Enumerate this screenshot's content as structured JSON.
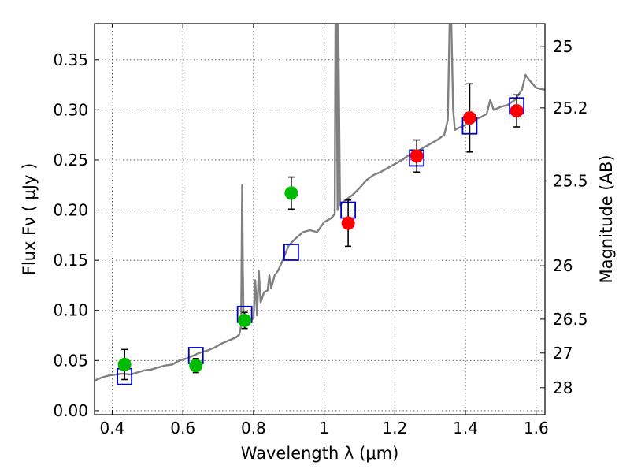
{
  "chart_data": {
    "type": "scatter",
    "xlabel": "Wavelength  λ (μm)",
    "ylabel": "Flux  Fν  ( μJy )",
    "y2label": "Magnitude (AB)",
    "xlim": [
      0.35,
      1.625
    ],
    "ylim": [
      -0.004,
      0.386
    ],
    "grid": true,
    "x_ticks": [
      0.4,
      0.6,
      0.8,
      1.0,
      1.2,
      1.4,
      1.6
    ],
    "x_tick_labels": [
      "0.4",
      "0.6",
      "0.8",
      "1",
      "1.2",
      "1.4",
      "1.6"
    ],
    "y_ticks": [
      0.0,
      0.05,
      0.1,
      0.15,
      0.2,
      0.25,
      0.3,
      0.35
    ],
    "y_tick_labels": [
      "0.00",
      "0.05",
      "0.10",
      "0.15",
      "0.20",
      "0.25",
      "0.30",
      "0.35"
    ],
    "y2_ticks": [
      {
        "label": "25",
        "flux": 0.3631
      },
      {
        "label": "25.2",
        "flux": 0.302
      },
      {
        "label": "25.5",
        "flux": 0.2291
      },
      {
        "label": "26",
        "flux": 0.1445
      },
      {
        "label": "26.5",
        "flux": 0.0912
      },
      {
        "label": "27",
        "flux": 0.0575
      },
      {
        "label": "28",
        "flux": 0.0229
      }
    ],
    "series": [
      {
        "kind": "line",
        "color": "#808080",
        "x": [
          0.35,
          0.37,
          0.39,
          0.41,
          0.43,
          0.45,
          0.47,
          0.49,
          0.51,
          0.53,
          0.55,
          0.57,
          0.59,
          0.61,
          0.63,
          0.65,
          0.67,
          0.69,
          0.71,
          0.73,
          0.75,
          0.76,
          0.765,
          0.768,
          0.77,
          0.772,
          0.775,
          0.78,
          0.79,
          0.8,
          0.805,
          0.81,
          0.815,
          0.82,
          0.83,
          0.84,
          0.845,
          0.85,
          0.86,
          0.87,
          0.88,
          0.9,
          0.92,
          0.94,
          0.96,
          0.98,
          1.0,
          1.02,
          1.03,
          1.032,
          1.035,
          1.038,
          1.04,
          1.045,
          1.06,
          1.08,
          1.1,
          1.12,
          1.14,
          1.16,
          1.18,
          1.2,
          1.22,
          1.24,
          1.26,
          1.28,
          1.3,
          1.32,
          1.34,
          1.35,
          1.355,
          1.36,
          1.365,
          1.37,
          1.38,
          1.4,
          1.42,
          1.44,
          1.46,
          1.47,
          1.48,
          1.5,
          1.52,
          1.54,
          1.56,
          1.57,
          1.58,
          1.6,
          1.625
        ],
        "y": [
          0.03,
          0.033,
          0.035,
          0.036,
          0.037,
          0.036,
          0.038,
          0.04,
          0.041,
          0.043,
          0.045,
          0.046,
          0.05,
          0.052,
          0.055,
          0.058,
          0.06,
          0.063,
          0.067,
          0.07,
          0.073,
          0.076,
          0.085,
          0.225,
          0.14,
          0.09,
          0.083,
          0.085,
          0.09,
          0.092,
          0.13,
          0.095,
          0.14,
          0.108,
          0.118,
          0.12,
          0.135,
          0.122,
          0.135,
          0.14,
          0.148,
          0.165,
          0.172,
          0.178,
          0.18,
          0.178,
          0.188,
          0.192,
          0.196,
          0.385,
          0.385,
          0.2,
          0.385,
          0.205,
          0.21,
          0.215,
          0.222,
          0.23,
          0.235,
          0.238,
          0.242,
          0.246,
          0.25,
          0.255,
          0.258,
          0.262,
          0.266,
          0.27,
          0.275,
          0.29,
          0.385,
          0.385,
          0.3,
          0.28,
          0.282,
          0.285,
          0.29,
          0.292,
          0.296,
          0.31,
          0.3,
          0.303,
          0.305,
          0.31,
          0.32,
          0.335,
          0.33,
          0.322,
          0.32
        ]
      },
      {
        "kind": "markers",
        "marker": "square",
        "color": "#0000cc",
        "x": [
          0.435,
          0.637,
          0.775,
          0.907,
          1.068,
          1.262,
          1.412,
          1.545
        ],
        "y": [
          0.034,
          0.055,
          0.096,
          0.158,
          0.2,
          0.252,
          0.284,
          0.304
        ]
      },
      {
        "kind": "markers",
        "marker": "circle",
        "color": "#00bb00",
        "x": [
          0.435,
          0.637,
          0.775,
          0.907
        ],
        "y": [
          0.046,
          0.045,
          0.09,
          0.217
        ],
        "yerr": [
          0.015,
          0.007,
          0.008,
          0.016
        ]
      },
      {
        "kind": "markers",
        "marker": "circle",
        "color": "#ff0000",
        "x": [
          1.068,
          1.262,
          1.412,
          1.545
        ],
        "y": [
          0.187,
          0.254,
          0.292,
          0.299
        ],
        "yerr": [
          0.023,
          0.016,
          0.034,
          0.016
        ]
      }
    ]
  }
}
